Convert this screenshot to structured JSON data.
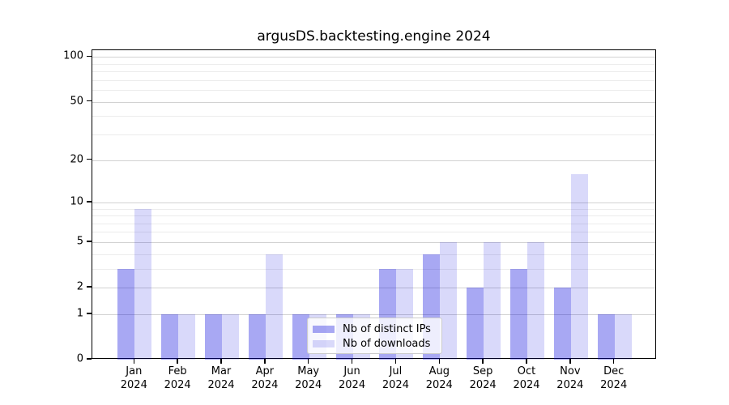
{
  "chart_data": {
    "type": "bar",
    "title": "argusDS.backtesting.engine 2024",
    "x": [
      {
        "label": "Jan",
        "sublabel": "2024"
      },
      {
        "label": "Feb",
        "sublabel": "2024"
      },
      {
        "label": "Mar",
        "sublabel": "2024"
      },
      {
        "label": "Apr",
        "sublabel": "2024"
      },
      {
        "label": "May",
        "sublabel": "2024"
      },
      {
        "label": "Jun",
        "sublabel": "2024"
      },
      {
        "label": "Jul",
        "sublabel": "2024"
      },
      {
        "label": "Aug",
        "sublabel": "2024"
      },
      {
        "label": "Sep",
        "sublabel": "2024"
      },
      {
        "label": "Oct",
        "sublabel": "2024"
      },
      {
        "label": "Nov",
        "sublabel": "2024"
      },
      {
        "label": "Dec",
        "sublabel": "2024"
      }
    ],
    "series": [
      {
        "name": "Nb of distinct IPs",
        "key": "distinct-ips",
        "color": "rgba(0,0,220,0.34)",
        "values": [
          3,
          1,
          1,
          1,
          1,
          1,
          3,
          4,
          2,
          3,
          2,
          1
        ]
      },
      {
        "name": "Nb of downloads",
        "key": "downloads",
        "color": "rgba(0,0,220,0.15)",
        "values": [
          9,
          1,
          1,
          4,
          1,
          1,
          3,
          5,
          5,
          5,
          16,
          1
        ]
      }
    ],
    "yscale": "log1p",
    "ylim": [
      0,
      111
    ],
    "yticks": [
      0,
      1,
      2,
      5,
      10,
      20,
      50,
      100
    ],
    "minor_yticks": [
      3,
      4,
      6,
      7,
      8,
      9,
      30,
      40,
      60,
      70,
      80,
      90
    ],
    "grid": true,
    "legend_position": "lower-center-inside"
  }
}
